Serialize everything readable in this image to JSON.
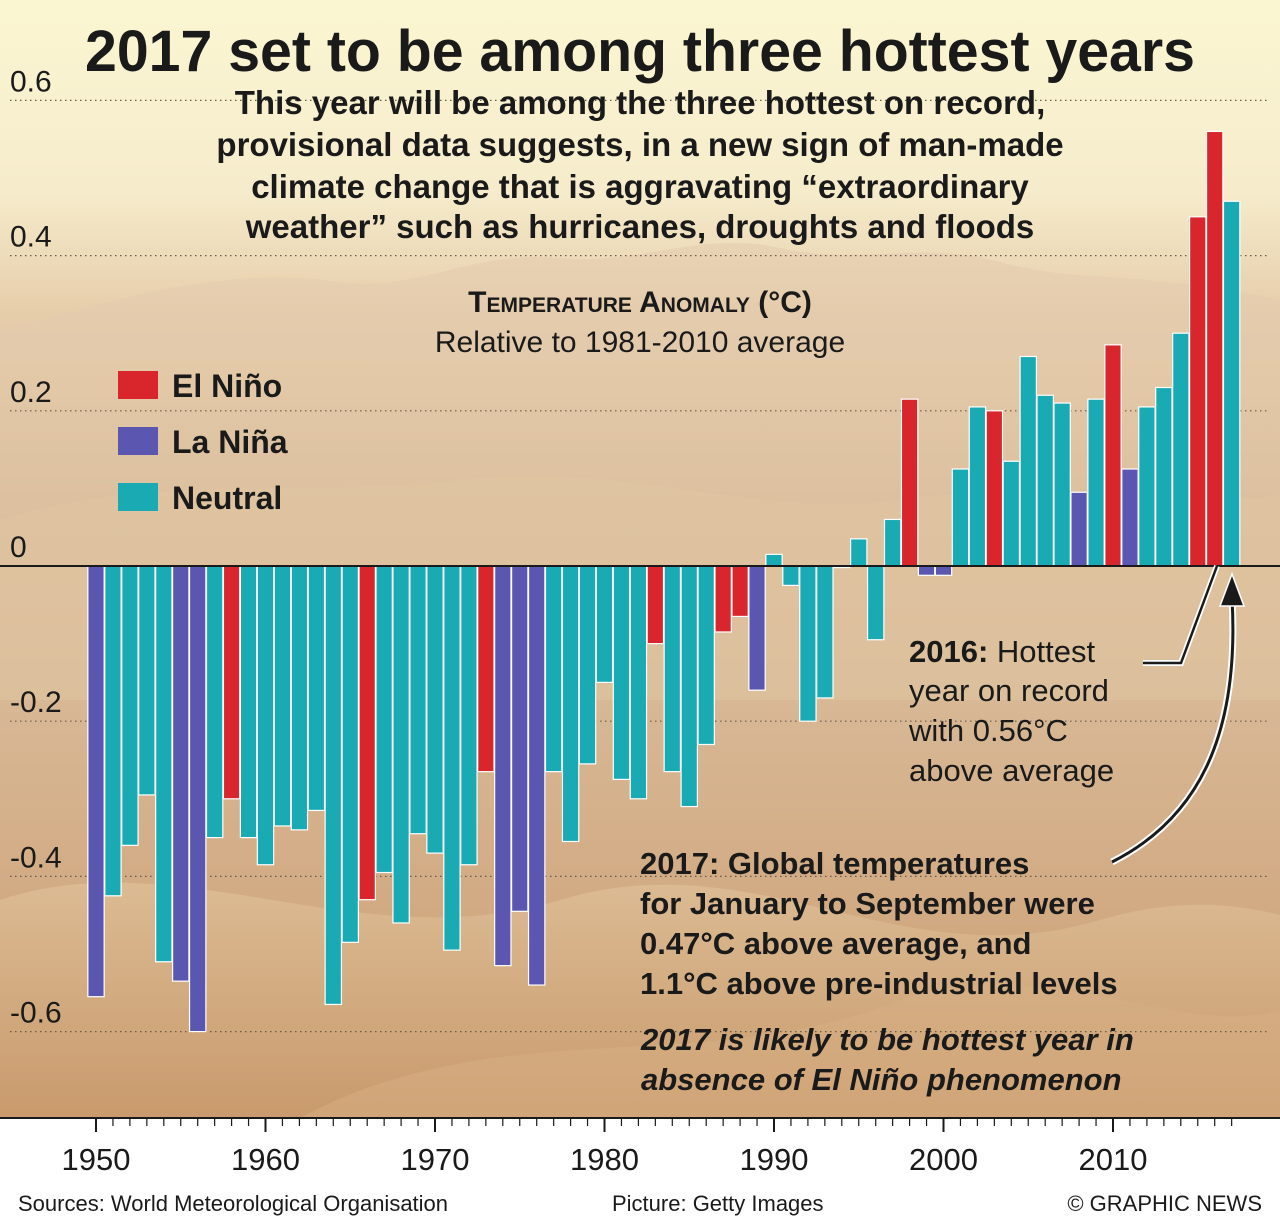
{
  "headline": "2017 set to be among three hottest years",
  "intro": [
    "This year will be among the three hottest on record,",
    "provisional data suggests, in a new sign of man-made",
    "climate change that is aggravating “extraordinary",
    "weather” such as hurricanes, droughts and floods"
  ],
  "chart_title": "Temperature Anomaly (°C)",
  "chart_subtitle": "Relative to 1981-2010 average",
  "annotation_2016": {
    "bold": "2016:",
    "rest_first": " Hottest",
    "lines": [
      "year on record",
      "with 0.56°C",
      "above average"
    ]
  },
  "annotation_2017": [
    "2017: Global temperatures",
    "for January to September were",
    "0.47°C above average, and",
    "1.1°C above pre-industrial levels"
  ],
  "annotation_italic": [
    "2017 is likely to be hottest year in",
    "absence of El Niño phenomenon"
  ],
  "footer": {
    "sources": "Sources: World Meteorological Organisation",
    "picture": "Picture: Getty Images",
    "credit": "© GRAPHIC NEWS"
  },
  "colors": {
    "el_nino": "#d9252c",
    "la_nina": "#5b56b0",
    "neutral": "#1aaab4"
  },
  "chart_data": {
    "type": "bar",
    "title": "Temperature Anomaly (°C)",
    "subtitle": "Relative to 1981-2010 average",
    "ylim": [
      -0.67,
      0.67
    ],
    "yticks": [
      0.6,
      0.4,
      0.2,
      0,
      -0.2,
      -0.4,
      -0.6
    ],
    "ytick_labels": [
      "0.6",
      "0.4",
      "0.2",
      "0",
      "-0.2",
      "-0.4",
      "-0.6"
    ],
    "xticks": [
      1950,
      1960,
      1970,
      1980,
      1990,
      2000,
      2010
    ],
    "xtick_labels": [
      "1950",
      "1960",
      "1970",
      "1980",
      "1990",
      "2000",
      "2010"
    ],
    "legend": [
      {
        "key": "el_nino",
        "label": "El Niño"
      },
      {
        "key": "la_nina",
        "label": "La Niña"
      },
      {
        "key": "neutral",
        "label": "Neutral"
      }
    ],
    "legend_position": "left",
    "grid": "dotted horizontal",
    "years": [
      1950,
      1951,
      1952,
      1953,
      1954,
      1955,
      1956,
      1957,
      1958,
      1959,
      1960,
      1961,
      1962,
      1963,
      1964,
      1965,
      1966,
      1967,
      1968,
      1969,
      1970,
      1971,
      1972,
      1973,
      1974,
      1975,
      1976,
      1977,
      1978,
      1979,
      1980,
      1981,
      1982,
      1983,
      1984,
      1985,
      1986,
      1987,
      1988,
      1989,
      1990,
      1991,
      1992,
      1993,
      1994,
      1995,
      1996,
      1997,
      1998,
      1999,
      2000,
      2001,
      2002,
      2003,
      2004,
      2005,
      2006,
      2007,
      2008,
      2009,
      2010,
      2011,
      2012,
      2013,
      2014,
      2015,
      2016,
      2017
    ],
    "values": [
      -0.555,
      -0.425,
      -0.36,
      -0.295,
      -0.51,
      -0.535,
      -0.6,
      -0.35,
      -0.3,
      -0.35,
      -0.385,
      -0.335,
      -0.34,
      -0.315,
      -0.565,
      -0.485,
      -0.43,
      -0.395,
      -0.46,
      -0.345,
      -0.37,
      -0.495,
      -0.385,
      -0.265,
      -0.515,
      -0.445,
      -0.54,
      -0.265,
      -0.355,
      -0.255,
      -0.15,
      -0.275,
      -0.3,
      -0.1,
      -0.265,
      -0.31,
      -0.23,
      -0.085,
      -0.065,
      -0.16,
      0.015,
      -0.025,
      -0.2,
      -0.17,
      -0.002,
      0.035,
      -0.095,
      0.06,
      0.215,
      -0.012,
      -0.012,
      0.125,
      0.205,
      0.2,
      0.135,
      0.27,
      0.22,
      0.21,
      0.095,
      0.215,
      0.285,
      0.125,
      0.205,
      0.23,
      0.3,
      0.45,
      0.56,
      0.47
    ],
    "phase": [
      "la_nina",
      "neutral",
      "neutral",
      "neutral",
      "neutral",
      "la_nina",
      "la_nina",
      "neutral",
      "el_nino",
      "neutral",
      "neutral",
      "neutral",
      "neutral",
      "neutral",
      "neutral",
      "neutral",
      "el_nino",
      "neutral",
      "neutral",
      "neutral",
      "neutral",
      "neutral",
      "neutral",
      "el_nino",
      "la_nina",
      "la_nina",
      "la_nina",
      "neutral",
      "neutral",
      "neutral",
      "neutral",
      "neutral",
      "neutral",
      "el_nino",
      "neutral",
      "neutral",
      "neutral",
      "el_nino",
      "el_nino",
      "la_nina",
      "neutral",
      "neutral",
      "neutral",
      "neutral",
      "neutral",
      "neutral",
      "neutral",
      "neutral",
      "el_nino",
      "la_nina",
      "la_nina",
      "neutral",
      "neutral",
      "el_nino",
      "neutral",
      "neutral",
      "neutral",
      "neutral",
      "la_nina",
      "neutral",
      "el_nino",
      "la_nina",
      "neutral",
      "neutral",
      "neutral",
      "el_nino",
      "el_nino",
      "neutral"
    ]
  }
}
